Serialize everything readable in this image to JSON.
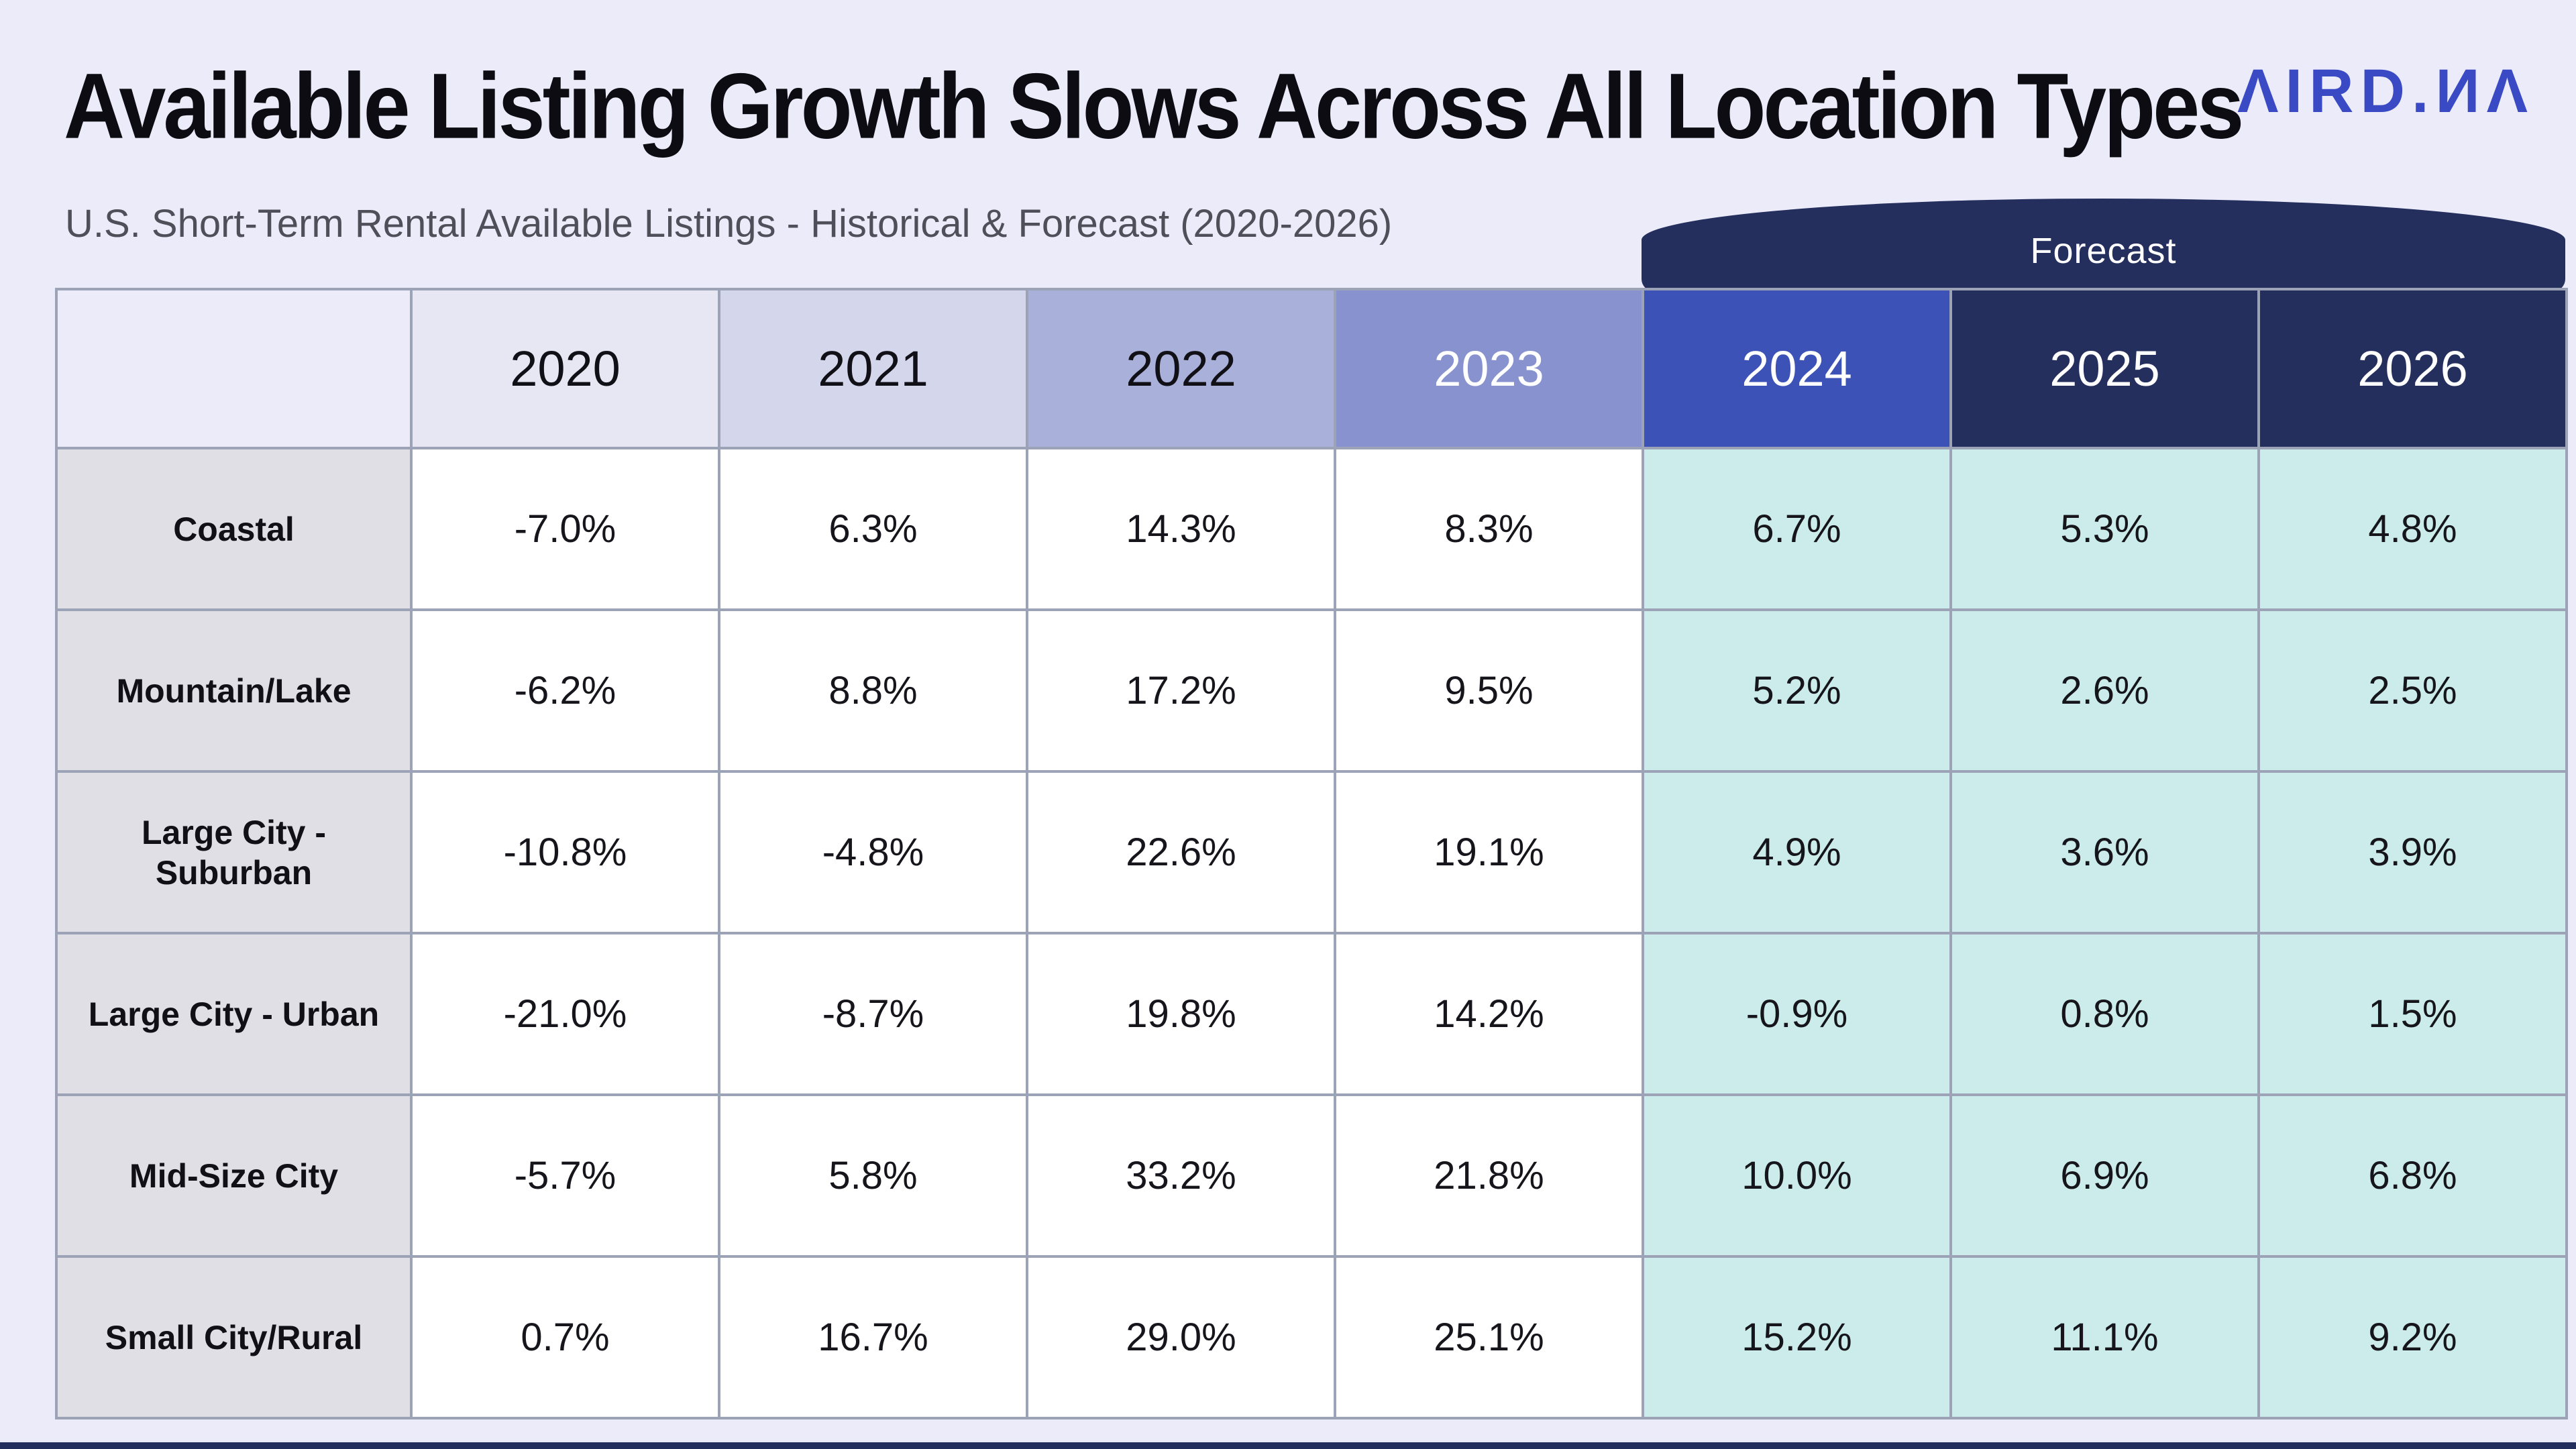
{
  "page": {
    "background": "#EBEBF9",
    "title": "Available Listing Growth Slows Across All Location Types",
    "subtitle": "U.S. Short-Term Rental Available Listings - Historical & Forecast (2020-2026)",
    "logo_text": "ΛIRD.ИΛ",
    "logo_brand": "AIRDNA",
    "logo_color": "#3A49C4"
  },
  "forecast_banner": {
    "label": "Forecast",
    "color": "#252F5E",
    "text_color": "#FFFFFF"
  },
  "chart_data": {
    "type": "table",
    "title": "Available Listing Growth Slows Across All Location Types",
    "subtitle": "U.S. Short-Term Rental Available Listings - Historical & Forecast (2020-2026)",
    "columns": [
      "2020",
      "2021",
      "2022",
      "2023",
      "2024",
      "2025",
      "2026"
    ],
    "forecast_columns": [
      "2024",
      "2025",
      "2026"
    ],
    "header_styles": [
      {
        "bg": "#E6E7F2",
        "fg": "#101016"
      },
      {
        "bg": "#D4D7EC",
        "fg": "#101016"
      },
      {
        "bg": "#A9B1DB",
        "fg": "#101016"
      },
      {
        "bg": "#8892CF",
        "fg": "#FFFFFF"
      },
      {
        "bg": "#3D52B7",
        "fg": "#FFFFFF"
      },
      {
        "bg": "#252F5E",
        "fg": "#FFFFFF"
      },
      {
        "bg": "#252F5E",
        "fg": "#FFFFFF"
      }
    ],
    "rows": [
      {
        "label": "Coastal",
        "values": [
          "-7.0%",
          "6.3%",
          "14.3%",
          "8.3%",
          "6.7%",
          "5.3%",
          "4.8%"
        ]
      },
      {
        "label": "Mountain/Lake",
        "values": [
          "-6.2%",
          "8.8%",
          "17.2%",
          "9.5%",
          "5.2%",
          "2.6%",
          "2.5%"
        ]
      },
      {
        "label": "Large City - Suburban",
        "values": [
          "-10.8%",
          "-4.8%",
          "22.6%",
          "19.1%",
          "4.9%",
          "3.6%",
          "3.9%"
        ]
      },
      {
        "label": "Large City - Urban",
        "values": [
          "-21.0%",
          "-8.7%",
          "19.8%",
          "14.2%",
          "-0.9%",
          "0.8%",
          "1.5%"
        ]
      },
      {
        "label": "Mid-Size City",
        "values": [
          "-5.7%",
          "5.8%",
          "33.2%",
          "21.8%",
          "10.0%",
          "6.9%",
          "6.8%"
        ]
      },
      {
        "label": "Small City/Rural",
        "values": [
          "0.7%",
          "16.7%",
          "29.0%",
          "25.1%",
          "15.2%",
          "11.1%",
          "9.2%"
        ]
      }
    ],
    "cell_colors": {
      "historical_bg": "#FFFFFF",
      "forecast_bg": "#CBECEA",
      "label_bg": "#DFDFE5",
      "border": "#9CA3B6",
      "text": "#15151B"
    },
    "layout_hints": {
      "historical_years": 4,
      "forecast_years": 3,
      "grid": true,
      "legend_position": "none"
    }
  }
}
